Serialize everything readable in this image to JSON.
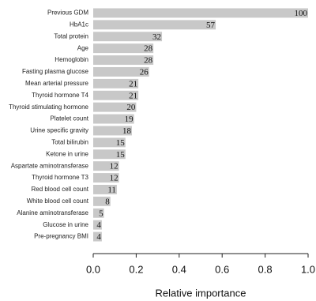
{
  "chart_data": {
    "type": "barh",
    "xlabel": "Relative importance",
    "categories": [
      "Previous GDM",
      "HbA1c",
      "Total protein",
      "Age",
      "Hemoglobin",
      "Fasting plasma glucose",
      "Mean arterial pressure",
      "Thyroid hormone T4",
      "Thyroid stimulating hormone",
      "Platelet count",
      "Urine specific gravity",
      "Total bilirubin",
      "Ketone in urine",
      "Aspartate aminotransferase",
      "Thyroid hormone T3",
      "Red blood cell count",
      "White blood cell count",
      "Alanine aminotransferase",
      "Glucose in urine",
      "Pre-pregnancy BMI"
    ],
    "values": [
      1.0,
      0.57,
      0.32,
      0.28,
      0.28,
      0.26,
      0.21,
      0.21,
      0.2,
      0.19,
      0.18,
      0.15,
      0.15,
      0.12,
      0.12,
      0.11,
      0.08,
      0.05,
      0.04,
      0.04
    ],
    "value_labels": [
      "100",
      "57",
      "32",
      "28",
      "28",
      "26",
      "21",
      "21",
      "20",
      "19",
      "18",
      "15",
      "15",
      "12",
      "12",
      "11",
      "8",
      "5",
      "4",
      "4"
    ],
    "color": "#c8c8c8",
    "xlim": [
      0,
      1.0
    ],
    "xticks": [
      {
        "value": 0,
        "label": "0.0"
      },
      0.2,
      0.4,
      0.6,
      0.8,
      {
        "value": 1.0,
        "label": "1.0"
      }
    ]
  }
}
